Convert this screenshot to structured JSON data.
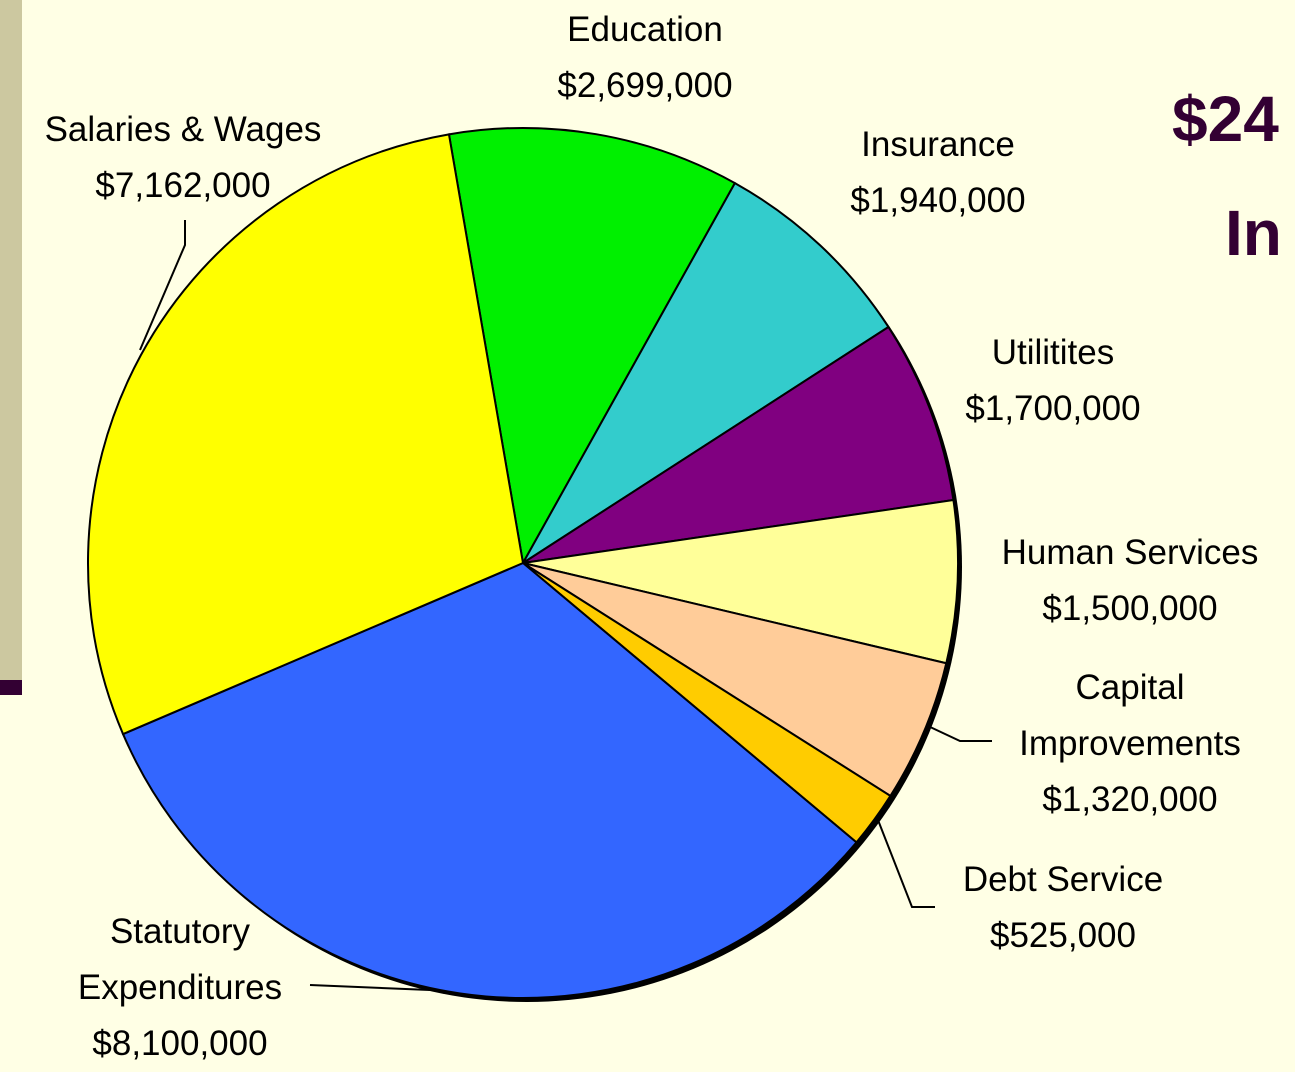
{
  "title_fragments": [
    "$24",
    "In"
  ],
  "chart_data": {
    "type": "pie",
    "categories": [
      "Education",
      "Insurance",
      "Utilitites",
      "Human Services",
      "Capital Improvements",
      "Debt Service",
      "Statutory Expenditures",
      "Salaries & Wages"
    ],
    "values": [
      2699000,
      1940000,
      1700000,
      1500000,
      1320000,
      525000,
      8100000,
      7162000
    ],
    "value_labels": [
      "$2,699,000",
      "$1,940,000",
      "$1,700,000",
      "$1,500,000",
      "$1,320,000",
      "$525,000",
      "$8,100,000",
      "$7,162,000"
    ],
    "colors": [
      "#00f000",
      "#33cccc",
      "#800080",
      "#ffff99",
      "#ffcc99",
      "#ffcc00",
      "#3366ff",
      "#ffff00"
    ]
  }
}
